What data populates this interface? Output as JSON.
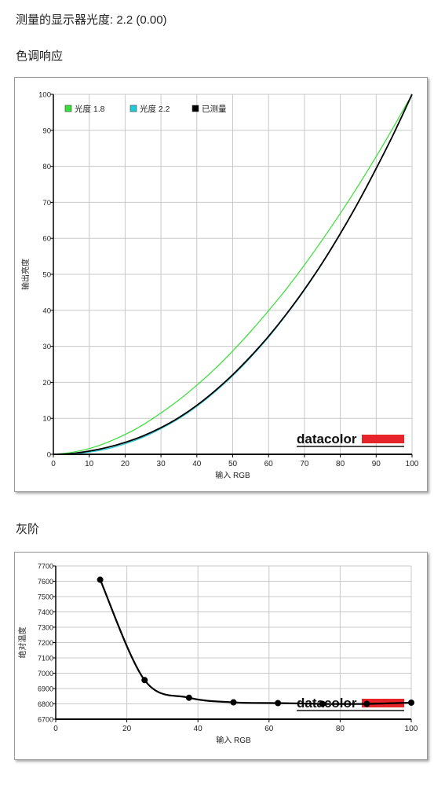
{
  "summary": {
    "label": "测量的显示器光度:",
    "value": "2.2 (0.00)"
  },
  "sections": {
    "tone": "色调响应",
    "gray": "灰阶"
  },
  "brand": "datacolor",
  "colors": {
    "gamma18": "#33e033",
    "gamma22": "#20c8d8",
    "measured": "#000000",
    "grid": "#c8c8c8",
    "brand_bar": "#e8242b"
  },
  "chart_data": [
    {
      "type": "line",
      "xlabel": "输入 RGB",
      "ylabel": "输出亮度",
      "xlim": [
        0,
        100
      ],
      "ylim": [
        0,
        100
      ],
      "xticks": [
        0,
        10,
        20,
        30,
        40,
        50,
        60,
        70,
        80,
        90,
        100
      ],
      "yticks": [
        0,
        10,
        20,
        30,
        40,
        50,
        60,
        70,
        80,
        90,
        100
      ],
      "grid": true,
      "legend_position": "top-left",
      "series": [
        {
          "name": "光度 1.8",
          "color": "#33e033",
          "x": [
            0,
            5,
            10,
            15,
            20,
            25,
            30,
            35,
            40,
            45,
            50,
            55,
            60,
            65,
            70,
            75,
            80,
            85,
            90,
            95,
            100
          ],
          "y": [
            0,
            0.5,
            1.6,
            3.3,
            5.5,
            8.2,
            11.5,
            15.1,
            19.2,
            23.7,
            28.7,
            34.1,
            39.9,
            46.0,
            52.6,
            59.6,
            66.9,
            74.6,
            82.7,
            91.2,
            100
          ]
        },
        {
          "name": "光度 2.2",
          "color": "#20c8d8",
          "x": [
            0,
            5,
            10,
            15,
            20,
            25,
            30,
            35,
            40,
            45,
            50,
            55,
            60,
            65,
            70,
            75,
            80,
            85,
            90,
            95,
            100
          ],
          "y": [
            0,
            0.1,
            0.6,
            1.5,
            2.9,
            4.7,
            7.1,
            9.9,
            13.3,
            17.3,
            21.8,
            26.9,
            32.5,
            38.8,
            45.6,
            53.1,
            61.2,
            70.0,
            79.3,
            89.3,
            100
          ]
        },
        {
          "name": "已测量",
          "color": "#000000",
          "x": [
            0,
            5,
            10,
            15,
            20,
            25,
            30,
            35,
            40,
            45,
            50,
            55,
            60,
            65,
            70,
            75,
            80,
            85,
            90,
            95,
            100
          ],
          "y": [
            0,
            0.2,
            0.9,
            1.9,
            3.3,
            5.1,
            7.4,
            10.2,
            13.6,
            17.6,
            22.1,
            27.2,
            32.8,
            39.0,
            45.8,
            53.2,
            61.3,
            70.0,
            79.4,
            89.3,
            100
          ]
        }
      ]
    },
    {
      "type": "line",
      "xlabel": "输入 RGB",
      "ylabel": "绝对温度",
      "xlim": [
        0,
        100
      ],
      "ylim": [
        6700,
        7700
      ],
      "xticks": [
        0,
        20,
        40,
        60,
        80,
        100
      ],
      "yticks": [
        6700,
        6800,
        6900,
        7000,
        7100,
        7200,
        7300,
        7400,
        7500,
        7600,
        7700
      ],
      "grid": true,
      "series": [
        {
          "color": "#000000",
          "x": [
            12.5,
            25,
            37.5,
            50,
            62.5,
            75,
            87.5,
            100
          ],
          "y": [
            7610,
            6955,
            6840,
            6810,
            6805,
            6800,
            6800,
            6808
          ]
        }
      ]
    }
  ]
}
